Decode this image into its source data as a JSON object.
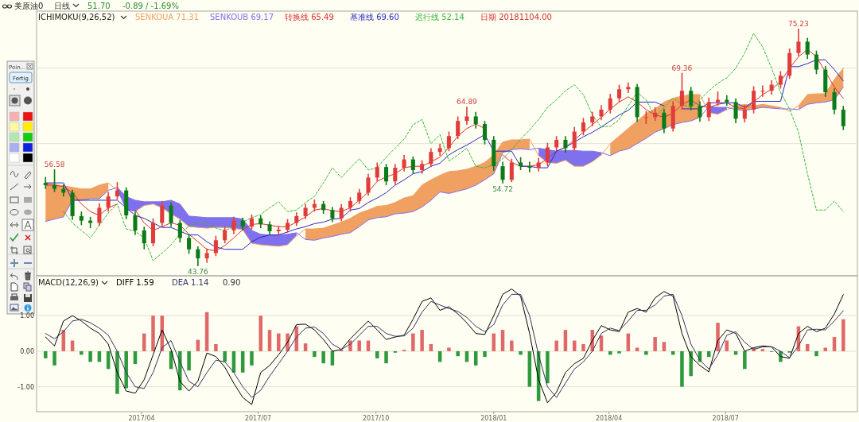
{
  "chart_data": [
    {
      "type": "candlestick",
      "title": "美原油0",
      "legend_title": "ICHIMOKU(9,26,52)",
      "legend": "top left",
      "grid": "y",
      "xlim": [
        "2017-01-09",
        "2018-10-12"
      ],
      "yticks": [
        {
          "value": 60,
          "label": null
        },
        {
          "value": 70,
          "label": null
        }
      ],
      "x": [
        "2017-01-16",
        "2017-01-23",
        "2017-01-30",
        "2017-02-06",
        "2017-02-13",
        "2017-02-20",
        "2017-02-27",
        "2017-03-06",
        "2017-03-13",
        "2017-03-20",
        "2017-03-27",
        "2017-04-03",
        "2017-04-10",
        "2017-04-17",
        "2017-04-24",
        "2017-05-01",
        "2017-05-08",
        "2017-05-15",
        "2017-05-22",
        "2017-05-29",
        "2017-06-05",
        "2017-06-12",
        "2017-06-19",
        "2017-06-26",
        "2017-07-03",
        "2017-07-10",
        "2017-07-17",
        "2017-07-24",
        "2017-07-31",
        "2017-08-07",
        "2017-08-14",
        "2017-08-21",
        "2017-08-28",
        "2017-09-04",
        "2017-09-11",
        "2017-09-18",
        "2017-09-25",
        "2017-10-02",
        "2017-10-09",
        "2017-10-16",
        "2017-10-23",
        "2017-10-30",
        "2017-11-06",
        "2017-11-13",
        "2017-11-20",
        "2017-11-27",
        "2017-12-04",
        "2017-12-11",
        "2017-12-18",
        "2017-12-25",
        "2018-01-01",
        "2018-01-08",
        "2018-01-15",
        "2018-01-22",
        "2018-01-29",
        "2018-02-05",
        "2018-02-12",
        "2018-02-19",
        "2018-02-26",
        "2018-03-05",
        "2018-03-12",
        "2018-03-19",
        "2018-03-26",
        "2018-04-02",
        "2018-04-09",
        "2018-04-16",
        "2018-04-23",
        "2018-04-30",
        "2018-05-07",
        "2018-05-14",
        "2018-05-21",
        "2018-05-28",
        "2018-06-04",
        "2018-06-11",
        "2018-06-18",
        "2018-06-25",
        "2018-07-02",
        "2018-07-09",
        "2018-07-16",
        "2018-07-23",
        "2018-07-30",
        "2018-08-06",
        "2018-08-13",
        "2018-08-20",
        "2018-08-27",
        "2018-09-03",
        "2018-09-10",
        "2018-09-17",
        "2018-09-24",
        "2018-10-01"
      ],
      "ohlc": [
        [
          54.8,
          55.6,
          54.0,
          54.5
        ],
        [
          54.5,
          56.58,
          53.6,
          54.0
        ],
        [
          54.0,
          54.6,
          53.0,
          53.5
        ],
        [
          53.5,
          53.9,
          49.9,
          50.4
        ],
        [
          50.4,
          51.0,
          49.2,
          49.8
        ],
        [
          49.8,
          50.3,
          48.8,
          49.5
        ],
        [
          49.5,
          52.1,
          49.1,
          51.5
        ],
        [
          51.5,
          53.6,
          51.0,
          53.0
        ],
        [
          53.0,
          54.9,
          52.6,
          53.8
        ],
        [
          53.8,
          54.2,
          50.0,
          50.5
        ],
        [
          50.5,
          51.0,
          47.9,
          48.5
        ],
        [
          48.5,
          49.0,
          46.0,
          46.8
        ],
        [
          46.8,
          50.1,
          46.4,
          49.5
        ],
        [
          49.5,
          52.4,
          49.0,
          51.8
        ],
        [
          51.8,
          52.2,
          49.0,
          49.5
        ],
        [
          49.5,
          49.9,
          46.9,
          47.5
        ],
        [
          47.5,
          48.0,
          45.4,
          46.0
        ],
        [
          46.0,
          46.4,
          43.76,
          44.8
        ],
        [
          44.8,
          46.1,
          44.2,
          45.5
        ],
        [
          45.5,
          47.8,
          45.1,
          47.2
        ],
        [
          47.2,
          49.0,
          46.8,
          48.5
        ],
        [
          48.5,
          50.3,
          48.0,
          49.8
        ],
        [
          49.8,
          50.2,
          48.5,
          49.0
        ],
        [
          49.0,
          50.6,
          48.6,
          50.1
        ],
        [
          50.1,
          50.5,
          48.8,
          49.3
        ],
        [
          49.3,
          49.7,
          47.9,
          48.4
        ],
        [
          48.4,
          49.1,
          47.9,
          48.6
        ],
        [
          48.6,
          50.0,
          48.2,
          49.5
        ],
        [
          49.5,
          50.9,
          49.1,
          50.4
        ],
        [
          50.4,
          52.0,
          50.0,
          51.5
        ],
        [
          51.5,
          52.6,
          51.0,
          52.0
        ],
        [
          52.0,
          52.4,
          50.7,
          51.2
        ],
        [
          51.2,
          51.6,
          49.6,
          50.1
        ],
        [
          50.1,
          52.0,
          49.7,
          51.5
        ],
        [
          51.5,
          52.9,
          51.0,
          52.4
        ],
        [
          52.4,
          54.0,
          52.0,
          53.5
        ],
        [
          53.5,
          56.0,
          53.1,
          55.5
        ],
        [
          55.5,
          57.5,
          55.0,
          56.9
        ],
        [
          56.9,
          57.3,
          54.5,
          55.0
        ],
        [
          55.0,
          57.3,
          54.6,
          56.8
        ],
        [
          56.8,
          58.5,
          56.3,
          57.9
        ],
        [
          57.9,
          58.3,
          56.0,
          56.5
        ],
        [
          56.5,
          57.8,
          56.0,
          57.3
        ],
        [
          57.3,
          59.4,
          56.9,
          58.9
        ],
        [
          58.9,
          60.0,
          58.4,
          59.4
        ],
        [
          59.4,
          61.6,
          59.0,
          61.0
        ],
        [
          61.0,
          63.6,
          60.6,
          63.0
        ],
        [
          63.0,
          64.89,
          62.5,
          63.6
        ],
        [
          63.6,
          64.2,
          62.0,
          62.6
        ],
        [
          62.6,
          63.0,
          59.9,
          60.5
        ],
        [
          60.5,
          61.0,
          56.4,
          57.0
        ],
        [
          57.0,
          57.6,
          54.72,
          55.2
        ],
        [
          55.2,
          58.0,
          54.9,
          57.5
        ],
        [
          57.5,
          58.2,
          56.5,
          57.0
        ],
        [
          57.0,
          57.6,
          56.2,
          56.8
        ],
        [
          56.8,
          58.1,
          56.3,
          57.5
        ],
        [
          57.5,
          60.1,
          57.0,
          59.5
        ],
        [
          59.5,
          61.0,
          59.0,
          60.5
        ],
        [
          60.5,
          61.0,
          58.8,
          59.4
        ],
        [
          59.4,
          62.2,
          59.0,
          61.6
        ],
        [
          61.6,
          63.4,
          61.1,
          62.8
        ],
        [
          62.8,
          64.2,
          62.3,
          63.6
        ],
        [
          63.6,
          65.1,
          63.1,
          64.5
        ],
        [
          64.5,
          66.6,
          64.0,
          66.0
        ],
        [
          66.0,
          67.8,
          65.5,
          67.2
        ],
        [
          67.2,
          68.1,
          66.7,
          67.5
        ],
        [
          67.5,
          67.9,
          62.9,
          63.5
        ],
        [
          63.5,
          64.3,
          62.6,
          63.5
        ],
        [
          63.5,
          64.8,
          63.0,
          64.1
        ],
        [
          64.1,
          64.6,
          61.4,
          62.0
        ],
        [
          62.0,
          65.6,
          61.6,
          65.0
        ],
        [
          65.0,
          69.36,
          64.5,
          67.0
        ],
        [
          67.0,
          67.5,
          64.4,
          65.0
        ],
        [
          65.0,
          65.6,
          62.9,
          63.5
        ],
        [
          63.5,
          66.1,
          63.0,
          65.5
        ],
        [
          65.5,
          66.9,
          65.0,
          65.8
        ],
        [
          65.8,
          66.4,
          65.0,
          65.5
        ],
        [
          65.5,
          66.0,
          62.7,
          63.3
        ],
        [
          63.3,
          65.1,
          62.8,
          64.5
        ],
        [
          64.5,
          67.6,
          64.0,
          67.0
        ],
        [
          67.0,
          67.7,
          66.2,
          67.0
        ],
        [
          67.0,
          68.4,
          66.5,
          67.8
        ],
        [
          67.8,
          69.6,
          67.3,
          69.0
        ],
        [
          69.0,
          72.6,
          68.6,
          72.0
        ],
        [
          72.0,
          75.23,
          71.6,
          73.5
        ],
        [
          73.5,
          74.0,
          71.2,
          71.8
        ],
        [
          71.8,
          72.3,
          69.2,
          69.8
        ],
        [
          69.8,
          70.3,
          66.2,
          66.8
        ],
        [
          66.8,
          67.3,
          63.9,
          64.5
        ],
        [
          64.5,
          65.0,
          61.8,
          62.3
        ]
      ],
      "series": [
        {
          "type": "line",
          "name": "SENKOUA 71.31",
          "color": "#f0a060",
          "lower": [
            49.7,
            50.0,
            50.3,
            52.5,
            52.5,
            52.7,
            52.7,
            53.8,
            null,
            null,
            null,
            null,
            null,
            null,
            null,
            null,
            null,
            null,
            null,
            null,
            null,
            null,
            null,
            null,
            null,
            null,
            null,
            null,
            null,
            47.3,
            47.2,
            47.5,
            47.7,
            48.0,
            48.2,
            49.0,
            49.9,
            50.2,
            50.3,
            50.7,
            50.8,
            51.0,
            51.6,
            52.5,
            53.6,
            53.4,
            53.7,
            54.0,
            54.5,
            55.2,
            56.0,
            58.8,
            59.2,
            59.3,
            59.2,
            null,
            null,
            null,
            null,
            null,
            null,
            null,
            null,
            58.4,
            59.0,
            59.3,
            60.0,
            60.7,
            61.5,
            62.0,
            62.5,
            62.8,
            63.0,
            63.5,
            null,
            null,
            null,
            64.5,
            64.4,
            64.6,
            64.8,
            64.7,
            64.6,
            null,
            64.5,
            65.2,
            65.4,
            65.5,
            65.8,
            67.5
          ],
          "upper": [
            54.8,
            54.6,
            54.4,
            54.2,
            54.0,
            54.0,
            54.5,
            54.8,
            null,
            null,
            null,
            null,
            null,
            null,
            null,
            null,
            null,
            null,
            null,
            null,
            null,
            null,
            null,
            null,
            null,
            null,
            null,
            null,
            null,
            48.7,
            48.7,
            48.8,
            49.2,
            49.6,
            50.1,
            50.8,
            51.2,
            51.7,
            51.8,
            52.2,
            52.8,
            53.1,
            54.5,
            55.2,
            55.8,
            56.3,
            56.4,
            56.6,
            57.0,
            57.5,
            58.5,
            60.2,
            60.5,
            60.5,
            60.6,
            null,
            null,
            null,
            null,
            null,
            null,
            null,
            null,
            60.0,
            61.0,
            62.0,
            63.0,
            64.0,
            64.6,
            65.5,
            66.0,
            66.3,
            66.5,
            66.5,
            null,
            null,
            null,
            65.0,
            65.2,
            65.0,
            65.2,
            65.0,
            64.8,
            null,
            65.0,
            66.5,
            66.6,
            66.6,
            68.5,
            70.0
          ],
          "values": [
            54.8,
            54.6,
            54.4,
            54.2,
            54.0,
            54.0,
            54.5,
            54.8,
            53.8,
            null,
            51.0,
            51.8,
            52.0,
            51.5,
            50.7,
            50.0,
            49.0,
            48.9,
            48.8,
            48.9,
            48.9,
            48.8,
            48.6,
            46.8,
            46.6,
            46.5,
            46.4,
            46.6,
            47.8,
            48.7,
            48.7,
            48.8,
            49.2,
            49.6,
            50.1,
            50.8,
            51.2,
            51.7,
            51.8,
            52.2,
            52.8,
            53.1,
            54.5,
            55.2,
            55.8,
            56.3,
            56.4,
            56.6,
            57.0,
            57.5,
            58.5,
            60.2,
            60.5,
            60.5,
            60.6,
            58.4,
            57.5,
            57.4,
            57.8,
            57.0,
            57.0,
            57.6,
            58.5,
            60.0,
            61.0,
            62.0,
            63.0,
            64.0,
            64.6,
            65.5,
            66.0,
            66.3,
            66.5,
            66.5,
            64.1,
            63.9,
            64.5,
            65.0,
            65.2,
            65.0,
            65.2,
            65.0,
            64.8,
            64.3,
            65.0,
            66.5,
            66.6,
            66.6,
            68.5,
            70.0
          ]
        },
        {
          "type": "line",
          "name": "SENKOUB 69.17",
          "color": "#7f70ee",
          "lower": [
            null,
            null,
            null,
            null,
            null,
            null,
            null,
            null,
            53.8,
            51.2,
            51.0,
            51.8,
            52.0,
            51.5,
            50.7,
            50.0,
            49.0,
            48.9,
            48.8,
            48.9,
            48.9,
            48.8,
            48.6,
            46.8,
            46.6,
            46.5,
            46.4,
            46.6,
            47.8,
            null,
            null,
            null,
            null,
            null,
            null,
            null,
            null,
            null,
            null,
            null,
            null,
            null,
            null,
            null,
            null,
            null,
            null,
            null,
            null,
            null,
            null,
            null,
            null,
            null,
            null,
            58.4,
            57.5,
            57.4,
            57.8,
            57.0,
            57.0,
            57.6,
            58.5,
            null,
            null,
            null,
            null,
            null,
            null,
            null,
            null,
            null,
            null,
            null,
            64.1,
            63.9,
            64.5,
            null,
            null,
            null,
            null,
            null,
            null,
            null,
            null,
            null,
            null,
            null,
            null,
            null
          ],
          "upper": [
            null,
            null,
            null,
            null,
            null,
            null,
            null,
            null,
            54.2,
            53.0,
            52.5,
            52.3,
            52.3,
            52.3,
            52.5,
            52.0,
            50.4,
            50.3,
            50.2,
            50.2,
            50.2,
            50.2,
            50.0,
            48.5,
            48.0,
            47.9,
            47.9,
            48.0,
            48.2,
            null,
            null,
            null,
            null,
            null,
            null,
            null,
            null,
            null,
            null,
            null,
            null,
            null,
            null,
            null,
            null,
            null,
            null,
            null,
            null,
            null,
            null,
            null,
            null,
            null,
            null,
            59.4,
            59.2,
            59.0,
            59.1,
            59.1,
            59.0,
            59.0,
            58.8,
            null,
            null,
            null,
            null,
            null,
            null,
            null,
            null,
            null,
            null,
            null,
            64.9,
            64.8,
            64.8,
            null,
            null,
            null,
            null,
            null,
            null,
            null,
            null,
            null,
            null,
            null,
            null,
            null
          ],
          "values": [
            49.7,
            50.0,
            50.3,
            52.5,
            52.5,
            52.7,
            52.7,
            53.8,
            54.2,
            53.0,
            52.5,
            52.3,
            52.3,
            52.3,
            52.5,
            52.0,
            50.4,
            50.3,
            50.2,
            50.2,
            50.2,
            50.2,
            50.0,
            48.5,
            48.0,
            47.9,
            47.9,
            48.0,
            48.2,
            47.3,
            47.2,
            47.5,
            47.7,
            48.0,
            48.2,
            49.0,
            49.9,
            50.2,
            50.3,
            50.7,
            50.8,
            51.0,
            51.6,
            52.5,
            53.6,
            53.4,
            53.7,
            54.0,
            54.5,
            55.2,
            56.0,
            58.8,
            59.2,
            59.3,
            59.2,
            59.4,
            59.2,
            59.0,
            59.1,
            59.1,
            59.0,
            59.0,
            58.8,
            58.4,
            59.0,
            59.3,
            60.0,
            60.7,
            61.5,
            62.0,
            62.5,
            62.8,
            63.0,
            63.5,
            64.9,
            64.8,
            64.8,
            64.5,
            64.4,
            64.6,
            64.8,
            64.7,
            64.6,
            64.6,
            64.5,
            65.2,
            65.4,
            65.5,
            65.8,
            67.5
          ]
        },
        {
          "type": "line",
          "name": "转换线 65.49",
          "color": "#e03030",
          "values": [
            54.5,
            54.5,
            54.3,
            53.5,
            52.0,
            51.0,
            50.5,
            51.5,
            52.0,
            null,
            51.2,
            49.5,
            48.5,
            49.0,
            49.5,
            49.2,
            48.0,
            47.0,
            46.0,
            45.8,
            46.5,
            47.5,
            48.6,
            49.3,
            49.4,
            49.2,
            49.0,
            49.0,
            49.6,
            50.3,
            51.2,
            51.4,
            51.1,
            51.0,
            51.5,
            52.5,
            53.6,
            55.0,
            55.6,
            56.0,
            56.8,
            57.0,
            57.0,
            57.6,
            58.2,
            59.5,
            61.0,
            62.0,
            62.6,
            62.0,
            null,
            58.5,
            57.5,
            57.0,
            57.0,
            57.2,
            58.0,
            59.0,
            59.5,
            60.5,
            61.5,
            62.5,
            63.5,
            64.6,
            65.5,
            66.2,
            65.5,
            64.5,
            63.8,
            63.5,
            64.0,
            65.2,
            65.8,
            65.0,
            64.8,
            65.2,
            65.4,
            64.8,
            64.6,
            65.5,
            66.5,
            67.2,
            68.2,
            70.0,
            71.5,
            72.5,
            71.5,
            69.5,
            67.5,
            66.0
          ]
        },
        {
          "type": "line",
          "name": "基准线 69.60",
          "color": "#2828c8",
          "values": [
            54.8,
            54.8,
            54.8,
            52.5,
            52.5,
            52.5,
            52.5,
            52.5,
            52.5,
            51.5,
            50.5,
            50.1,
            49.5,
            48.9,
            48.9,
            48.4,
            47.9,
            47.9,
            47.0,
            46.3,
            46.0,
            46.0,
            46.0,
            47.0,
            47.6,
            47.9,
            47.9,
            48.3,
            48.7,
            49.0,
            49.4,
            49.6,
            50.0,
            50.1,
            51.2,
            51.4,
            52.2,
            52.8,
            53.5,
            54.5,
            55.2,
            56.0,
            56.3,
            57.0,
            57.4,
            58.5,
            59.2,
            59.8,
            60.5,
            61.2,
            59.0,
            59.0,
            59.0,
            57.0,
            57.0,
            56.8,
            56.8,
            59.0,
            59.5,
            60.2,
            60.9,
            61.5,
            62.2,
            63.0,
            63.8,
            64.4,
            65.5,
            65.5,
            65.5,
            65.0,
            null,
            64.6,
            64.6,
            64.6,
            65.4,
            65.4,
            65.4,
            65.4,
            64.8,
            65.6,
            65.6,
            65.6,
            65.6,
            70.2,
            70.2,
            70.6,
            71.1,
            71.1,
            69.8,
            68.3
          ]
        },
        {
          "type": "line",
          "name": "迟行线 52.14",
          "color": "#3cb83c",
          "line_style": "dashed",
          "values": [
            null,
            null,
            51.0,
            49.5,
            48.5,
            47.5,
            49.2,
            50.8,
            52.0,
            48.7,
            48.4,
            47.5,
            44.5,
            45.5,
            46.6,
            48.0,
            49.1,
            49.5,
            49.5,
            48.8,
            48.5,
            49.0,
            49.6,
            50.2,
            50.6,
            51.5,
            52.3,
            51.0,
            51.2,
            52.2,
            53.0,
            54.8,
            56.8,
            55.5,
            56.8,
            58.0,
            56.5,
            56.8,
            58.2,
            59.4,
            60.6,
            62.5,
            63.2,
            60.0,
            61.2,
            57.7,
            58.5,
            59.4,
            57.0,
            56.8,
            57.2,
            58.0,
            59.2,
            60.6,
            61.8,
            63.2,
            64.8,
            65.8,
            67.0,
            67.8,
            66.5,
            63.8,
            62.2,
            62.3,
            63.2,
            65.0,
            66.8,
            65.8,
            63.5,
            64.8,
            66.0,
            65.2,
            64.8,
            65.8,
            67.0,
            68.0,
            68.7,
            70.0,
            72.0,
            74.6,
            72.8,
            70.0,
            66.8,
            64.6,
            61.5,
            56.0,
            51.2,
            51.2,
            52.4,
            51.0
          ]
        }
      ],
      "annotations": [
        "日线",
        "51.70",
        "-0.89 / -1.69%",
        "日期 20181104.00",
        "Poin...",
        "Fertig",
        {
          "text": "56.58",
          "x": "2017-01-23",
          "y": 56.58
        },
        {
          "text": "43.76",
          "x": "2017-05-15",
          "y": 43.76
        },
        {
          "text": "64.89",
          "x": "2017-12-11",
          "y": 64.89
        },
        {
          "text": "54.72",
          "x": "2018-01-08",
          "y": 54.72
        },
        {
          "text": "69.36",
          "x": "2018-05-28",
          "y": 69.36
        },
        {
          "text": "75.23",
          "x": "2018-08-27",
          "y": 75.23
        }
      ]
    },
    {
      "type": "bar",
      "legend_title": "MACD(12,26,9)",
      "legend": "top left",
      "grid": "y",
      "xlim": [
        "2017-01-09",
        "2018-10-12"
      ],
      "xticks": [
        {
          "value": "2017-04-01",
          "label": "2017/04"
        },
        {
          "value": "2017-07-01",
          "label": "2017/07"
        },
        {
          "value": "2017-10-01",
          "label": "2017/10"
        },
        {
          "value": "2018-01-01",
          "label": "2018/01"
        },
        {
          "value": "2018-04-01",
          "label": "2018/04"
        },
        {
          "value": "2018-07-01",
          "label": "2018/07"
        }
      ],
      "ylim": [
        -1.7,
        2.1
      ],
      "yticks": [
        {
          "value": 1,
          "label": "1.00"
        },
        {
          "value": 0,
          "label": "0.00"
        },
        {
          "value": -1,
          "label": "-1.00"
        }
      ],
      "x": [
        "2017-01-16",
        "2017-01-23",
        "2017-01-30",
        "2017-02-06",
        "2017-02-13",
        "2017-02-20",
        "2017-02-27",
        "2017-03-06",
        "2017-03-13",
        "2017-03-20",
        "2017-03-27",
        "2017-04-03",
        "2017-04-10",
        "2017-04-17",
        "2017-04-24",
        "2017-05-01",
        "2017-05-08",
        "2017-05-15",
        "2017-05-22",
        "2017-05-29",
        "2017-06-05",
        "2017-06-12",
        "2017-06-19",
        "2017-06-26",
        "2017-07-03",
        "2017-07-10",
        "2017-07-17",
        "2017-07-24",
        "2017-07-31",
        "2017-08-07",
        "2017-08-14",
        "2017-08-21",
        "2017-08-28",
        "2017-09-04",
        "2017-09-11",
        "2017-09-18",
        "2017-09-25",
        "2017-10-02",
        "2017-10-09",
        "2017-10-16",
        "2017-10-23",
        "2017-10-30",
        "2017-11-06",
        "2017-11-13",
        "2017-11-20",
        "2017-11-27",
        "2017-12-04",
        "2017-12-11",
        "2017-12-18",
        "2017-12-25",
        "2018-01-01",
        "2018-01-08",
        "2018-01-15",
        "2018-01-22",
        "2018-01-29",
        "2018-02-05",
        "2018-02-12",
        "2018-02-19",
        "2018-02-26",
        "2018-03-05",
        "2018-03-12",
        "2018-03-19",
        "2018-03-26",
        "2018-04-02",
        "2018-04-09",
        "2018-04-16",
        "2018-04-23",
        "2018-04-30",
        "2018-05-07",
        "2018-05-14",
        "2018-05-21",
        "2018-05-28",
        "2018-06-04",
        "2018-06-11",
        "2018-06-18",
        "2018-06-25",
        "2018-07-02",
        "2018-07-09",
        "2018-07-16",
        "2018-07-23",
        "2018-07-30",
        "2018-08-06",
        "2018-08-13",
        "2018-08-20",
        "2018-08-27",
        "2018-09-03",
        "2018-09-10",
        "2018-09-17",
        "2018-09-24",
        "2018-10-01"
      ],
      "series": [
        {
          "type": "bar",
          "colors": [
            "#2e9a3e",
            "#2e9a3e",
            "#e06868",
            "#e06868",
            "#2e9a3e",
            "#2e9a3e",
            "#2e9a3e",
            "#2e9a3e",
            "#2e9a3e",
            "#2e9a3e",
            "#2e9a3e",
            "#e06868",
            "#e06868",
            "#e06868",
            "#2e9a3e",
            "#2e9a3e",
            "#2e9a3e",
            "#e06868",
            "#e06868",
            "#e06868",
            "#2e9a3e",
            "#2e9a3e",
            "#2e9a3e",
            "#2e9a3e",
            "#e06868",
            "#e06868",
            "#e06868",
            "#e06868",
            "#e06868",
            "#e06868",
            "#2e9a3e",
            "#2e9a3e",
            "#2e9a3e",
            "#e06868",
            "#e06868",
            "#e06868",
            "#e06868",
            "#2e9a3e",
            "#2e9a3e",
            "#2e9a3e",
            "#e06868",
            "#e06868",
            "#e06868",
            "#e06868",
            "#2e9a3e",
            "#e06868",
            "#2e9a3e",
            "#2e9a3e",
            "#2e9a3e",
            "#2e9a3e",
            "#e06868",
            "#e06868",
            "#e06868",
            "#2e9a3e",
            "#2e9a3e",
            "#2e9a3e",
            "#2e9a3e",
            "#e06868",
            "#e06868",
            "#e06868",
            "#e06868",
            "#e06868",
            "#e06868",
            "#2e9a3e",
            "#2e9a3e",
            "#e06868",
            "#e06868",
            "#2e9a3e",
            "#e06868",
            "#e06868",
            "#2e9a3e",
            "#2e9a3e",
            "#2e9a3e",
            "#2e9a3e",
            "#2e9a3e",
            "#e06868",
            "#e06868",
            "#2e9a3e",
            "#2e9a3e",
            "#e06868",
            "#e06868",
            "#2e9a3e",
            "#2e9a3e",
            "#2e9a3e",
            "#e06868",
            "#e06868",
            "#2e9a3e",
            "#e06868",
            "#e06868",
            "#e06868"
          ],
          "values": [
            -0.2,
            -0.4,
            0.6,
            0.3,
            -0.1,
            -0.3,
            -0.3,
            -0.5,
            -1.2,
            -1.04,
            -0.36,
            0.5,
            1.0,
            1.0,
            -0.5,
            -1.1,
            -0.54,
            0.32,
            1.1,
            0.2,
            -0.3,
            -0.6,
            -0.6,
            -0.4,
            1.0,
            0.6,
            0.5,
            0.5,
            0.7,
            0.22,
            -0.16,
            -0.34,
            -0.4,
            0.04,
            0.3,
            0.3,
            0.3,
            -0.2,
            -0.34,
            -0.04,
            0.04,
            0.5,
            0.6,
            0.2,
            -0.3,
            0.1,
            -0.14,
            -0.3,
            -0.4,
            -0.16,
            0.5,
            0.6,
            0.3,
            -0.1,
            -1.0,
            -1.4,
            -0.9,
            0.3,
            0.6,
            0.3,
            0.2,
            0.6,
            0.44,
            -0.1,
            -0.06,
            0.5,
            0.1,
            -0.1,
            0.4,
            0.26,
            -0.1,
            -1.0,
            -0.7,
            -0.3,
            -0.16,
            0.8,
            0.3,
            -0.1,
            -0.5,
            0.1,
            0.06,
            -0.02,
            -0.3,
            -0.04,
            0.7,
            0.2,
            -0.14,
            0.1,
            0.4,
            0.9
          ]
        },
        {
          "type": "line",
          "name": "DIFF 1.59",
          "color": "#000000",
          "values": [
            0.4,
            0.15,
            0.85,
            1.0,
            0.85,
            0.65,
            0.5,
            0.2,
            -0.6,
            -1.12,
            -1.18,
            -0.8,
            -0.1,
            0.6,
            0.05,
            -0.85,
            -1.12,
            -0.84,
            -0.05,
            -0.15,
            -0.45,
            -0.9,
            -1.3,
            -1.5,
            -0.6,
            -0.4,
            -0.1,
            0.25,
            0.75,
            0.76,
            0.6,
            0.33,
            0.0,
            0.05,
            0.35,
            0.6,
            0.85,
            0.6,
            0.33,
            0.4,
            0.45,
            0.9,
            1.4,
            1.5,
            1.15,
            1.25,
            1.05,
            0.8,
            0.5,
            0.47,
            1.0,
            1.6,
            1.75,
            1.55,
            0.5,
            -0.8,
            -1.45,
            -1.15,
            -0.6,
            -0.35,
            -0.2,
            0.3,
            0.72,
            0.6,
            0.55,
            1.1,
            1.2,
            1.1,
            1.5,
            1.68,
            1.55,
            0.5,
            -0.15,
            -0.4,
            -0.58,
            0.3,
            0.6,
            0.5,
            0.0,
            0.1,
            0.15,
            0.12,
            -0.15,
            -0.2,
            0.5,
            0.7,
            0.55,
            0.65,
            1.05,
            1.59
          ]
        },
        {
          "type": "line",
          "name": "DEA 1.14",
          "color": "#333366",
          "values": [
            0.5,
            0.35,
            0.55,
            0.85,
            0.9,
            0.8,
            0.65,
            0.45,
            0.0,
            -0.6,
            -1.0,
            -1.05,
            -0.6,
            0.1,
            0.3,
            -0.3,
            -0.85,
            -1.0,
            -0.6,
            -0.25,
            -0.3,
            -0.6,
            -1.0,
            -1.3,
            -1.1,
            -0.7,
            -0.35,
            0.0,
            0.4,
            0.65,
            0.68,
            0.5,
            0.2,
            0.05,
            0.2,
            0.45,
            0.7,
            0.7,
            0.5,
            0.42,
            0.43,
            0.65,
            1.1,
            1.4,
            1.3,
            1.2,
            1.12,
            0.95,
            0.7,
            0.55,
            0.75,
            1.3,
            1.6,
            1.6,
            1.0,
            -0.1,
            -1.0,
            -1.3,
            -0.9,
            -0.5,
            -0.3,
            0.0,
            0.5,
            0.65,
            0.58,
            0.85,
            1.15,
            1.15,
            1.3,
            1.55,
            1.6,
            1.0,
            0.2,
            -0.25,
            -0.5,
            -0.1,
            0.45,
            0.55,
            0.25,
            0.05,
            0.12,
            0.13,
            0.0,
            -0.18,
            0.15,
            0.6,
            0.62,
            0.6,
            0.85,
            1.14
          ]
        }
      ],
      "annotations": [
        "0.90"
      ]
    }
  ]
}
